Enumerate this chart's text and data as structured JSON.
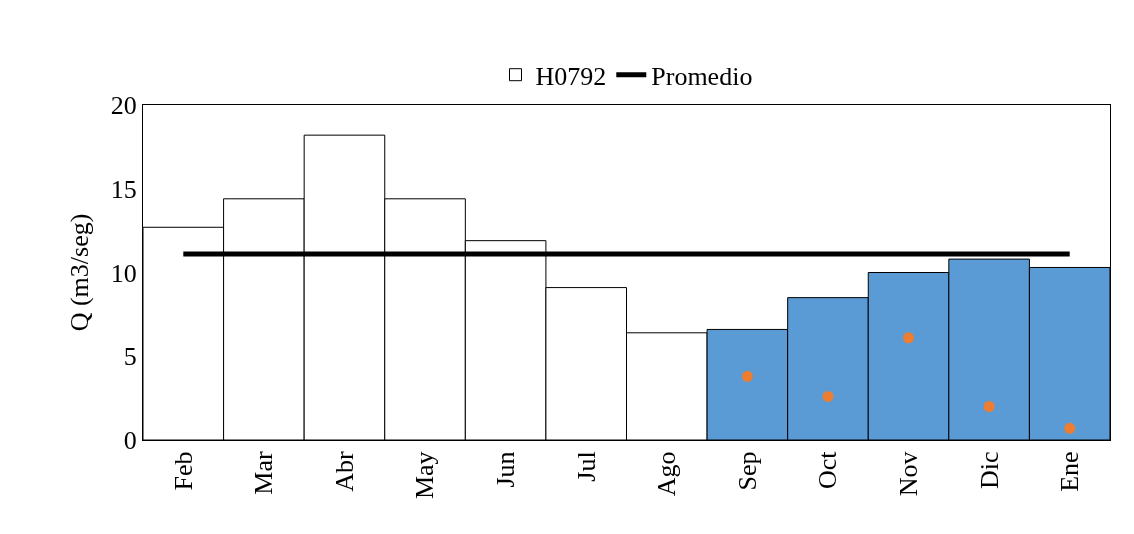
{
  "chart_data": {
    "type": "bar",
    "ylabel": "Q (m3/seg)",
    "categories": [
      "Feb",
      "Mar",
      "Abr",
      "May",
      "Jun",
      "Jul",
      "Ago",
      "Sep",
      "Oct",
      "Nov",
      "Dic",
      "Ene"
    ],
    "series": [
      {
        "name": "H0792",
        "colors": [
          "#ffffff",
          "#ffffff",
          "#ffffff",
          "#ffffff",
          "#ffffff",
          "#ffffff",
          "#ffffff",
          "#5b9bd5",
          "#5b9bd5",
          "#5b9bd5",
          "#5b9bd5",
          "#5b9bd5"
        ],
        "values": [
          12.7,
          14.4,
          18.2,
          14.4,
          11.9,
          9.1,
          6.4,
          6.6,
          8.5,
          10.0,
          10.8,
          10.3
        ]
      },
      {
        "name": "Promedio",
        "type": "line",
        "color": "#000000",
        "values": [
          11.1,
          11.1,
          11.1,
          11.1,
          11.1,
          11.1,
          11.1,
          11.1,
          11.1,
          11.1,
          11.1,
          11.1
        ]
      },
      {
        "type": "scatter",
        "marker": "circle",
        "color": "#ed7d31",
        "values": [
          null,
          null,
          null,
          null,
          null,
          null,
          null,
          3.8,
          2.6,
          6.1,
          2.0,
          0.7
        ]
      }
    ],
    "ylim": [
      0,
      20
    ],
    "yticks": [
      0,
      5,
      10,
      15,
      20
    ],
    "grid": false,
    "legend": "top"
  }
}
